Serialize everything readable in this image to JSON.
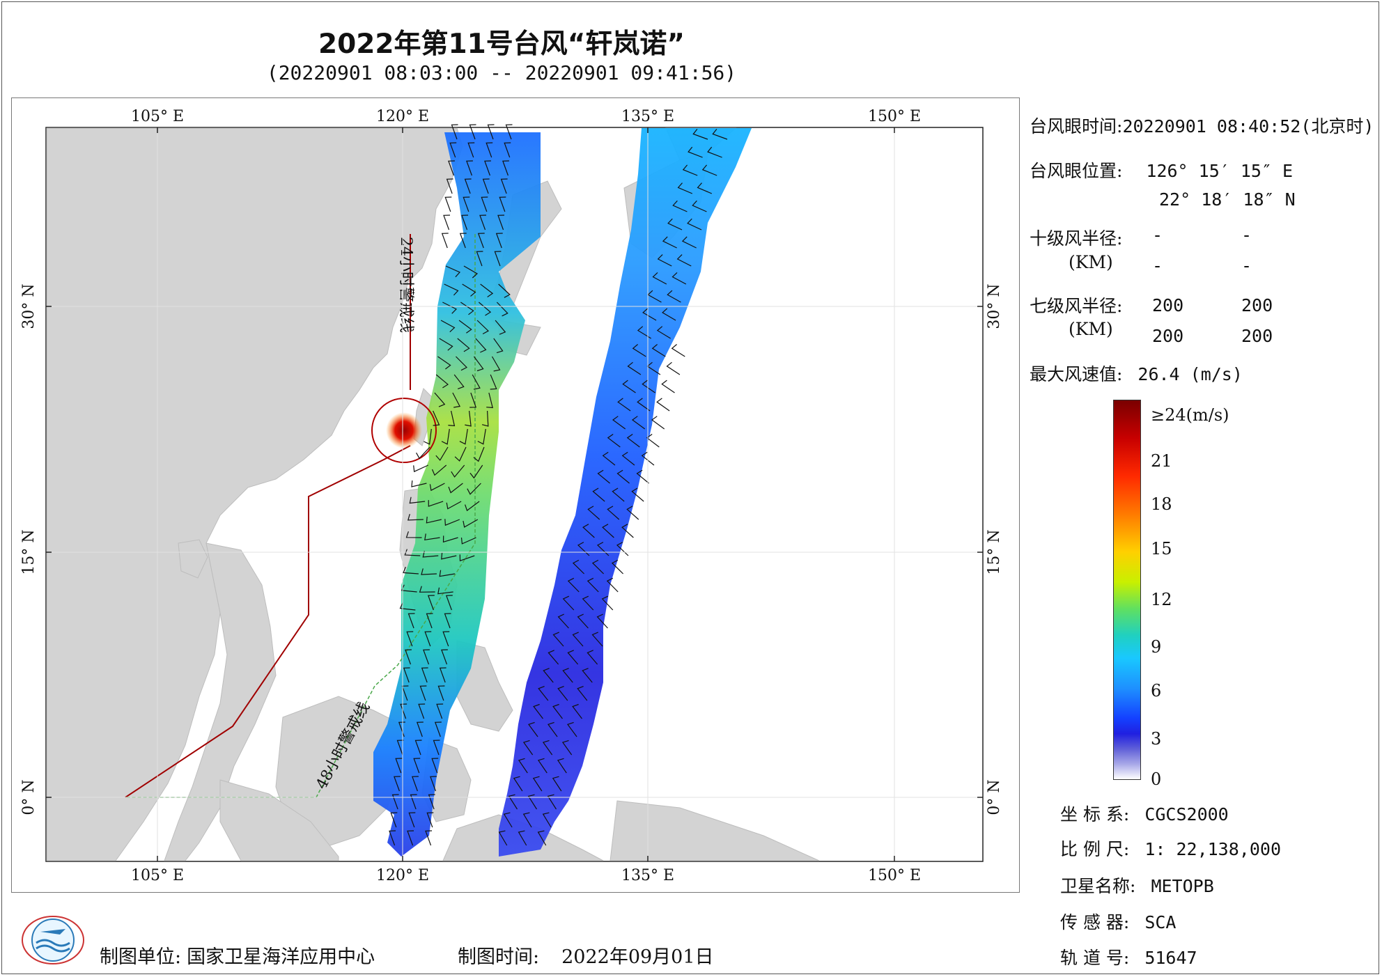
{
  "title": "2022年第11号台风“轩岚诺”",
  "subtitle": "(20220901 08:03:00 -- 20220901 09:41:56)",
  "map": {
    "lon_labels": [
      "105° E",
      "120° E",
      "135° E",
      "150° E"
    ],
    "lat_labels": [
      "30° N",
      "15° N",
      "0° N"
    ],
    "warning_line_24h": "24小时警戒线",
    "warning_line_48h": "48小时警戒线",
    "colors": {
      "land": "#d3d3d3",
      "ocean": "#ffffff",
      "warn24": "#a00000",
      "warn48": "#4aa84a"
    }
  },
  "info": {
    "eye_time_label": "台风眼时间:",
    "eye_time_value": "20220901 08:40:52(北京时)",
    "eye_pos_label": "台风眼位置:",
    "eye_lon": "126° 15′ 15″ E",
    "eye_lat": "22° 18′ 18″ N",
    "r10_label": "十级风半径:",
    "r10_unit": "(KM)",
    "r10_values": [
      "-",
      "-",
      "-",
      "-"
    ],
    "r7_label": "七级风半径:",
    "r7_unit": "(KM)",
    "r7_values": [
      "200",
      "200",
      "200",
      "200"
    ],
    "max_wind_label": "最大风速值:",
    "max_wind_value": "26.4  (m/s)"
  },
  "colorbar": {
    "ticks": [
      "≥24(m/s)",
      "21",
      "18",
      "15",
      "12",
      "9",
      "6",
      "3",
      "0"
    ]
  },
  "meta": {
    "crs_label": "坐 标 系:",
    "crs_value": "CGCS2000",
    "scale_label": "比 例 尺:",
    "scale_value": "1: 22,138,000",
    "sat_label": "卫星名称:",
    "sat_value": "METOPB",
    "sensor_label": "传 感 器:",
    "sensor_value": "SCA",
    "orbit_label": "轨 道 号:",
    "orbit_value": "51647"
  },
  "footer": {
    "unit_label": "制图单位:",
    "unit_value": "国家卫星海洋应用中心",
    "time_label": "制图时间:",
    "time_value": "2022年09月01日"
  }
}
